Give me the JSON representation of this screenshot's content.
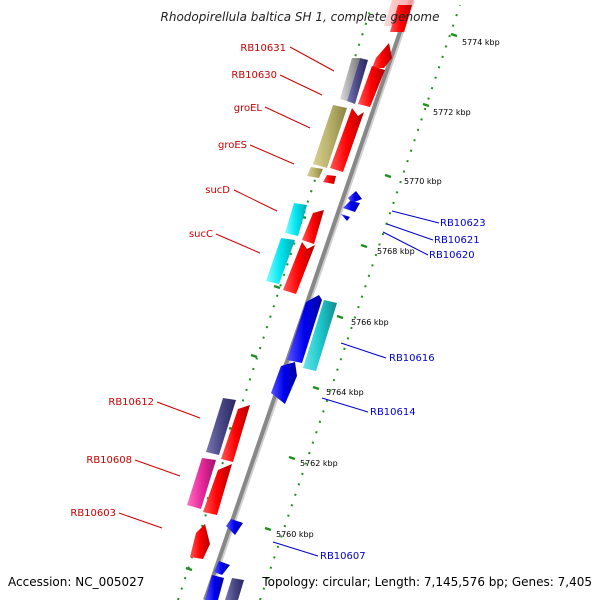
{
  "title": "Rhodopirellula baltica SH 1, complete genome",
  "footer": {
    "accession": "Accession: NC_005027",
    "topology": "Topology: circular; Length: 7,145,576 bp; Genes: 7,405"
  },
  "colors": {
    "forward_cds": "#ff0000",
    "reverse_cds": "#0000ee",
    "label_forward": "#cc0000",
    "label_reverse": "#0000cc",
    "backbone": "#888888",
    "tick_green": "#1f8f1f",
    "ortholog_navy": "#4a4785",
    "ortholog_khaki": "#b8b06a",
    "ortholog_cyan": "#00e5f0",
    "ortholog_teal": "#1ec8cc",
    "ortholog_magenta": "#e8299b",
    "ortholog_gray": "#aaaaaa"
  },
  "ticks": [
    {
      "kbp": 5760,
      "label": "5760 kbp"
    },
    {
      "kbp": 5762,
      "label": "5762 kbp"
    },
    {
      "kbp": 5764,
      "label": "5764 kbp"
    },
    {
      "kbp": 5766,
      "label": "5766 kbp"
    },
    {
      "kbp": 5768,
      "label": "5768 kbp"
    },
    {
      "kbp": 5770,
      "label": "5770 kbp"
    },
    {
      "kbp": 5772,
      "label": "5772 kbp"
    },
    {
      "kbp": 5774,
      "label": "5774 kbp"
    }
  ],
  "forward_labels": [
    "RB10631",
    "RB10630",
    "groEL",
    "groES",
    "sucD",
    "sucC",
    "RB10612",
    "RB10608",
    "RB10603"
  ],
  "reverse_labels": [
    "RB10623",
    "RB10621",
    "RB10620",
    "RB10616",
    "RB10614",
    "RB10607"
  ]
}
